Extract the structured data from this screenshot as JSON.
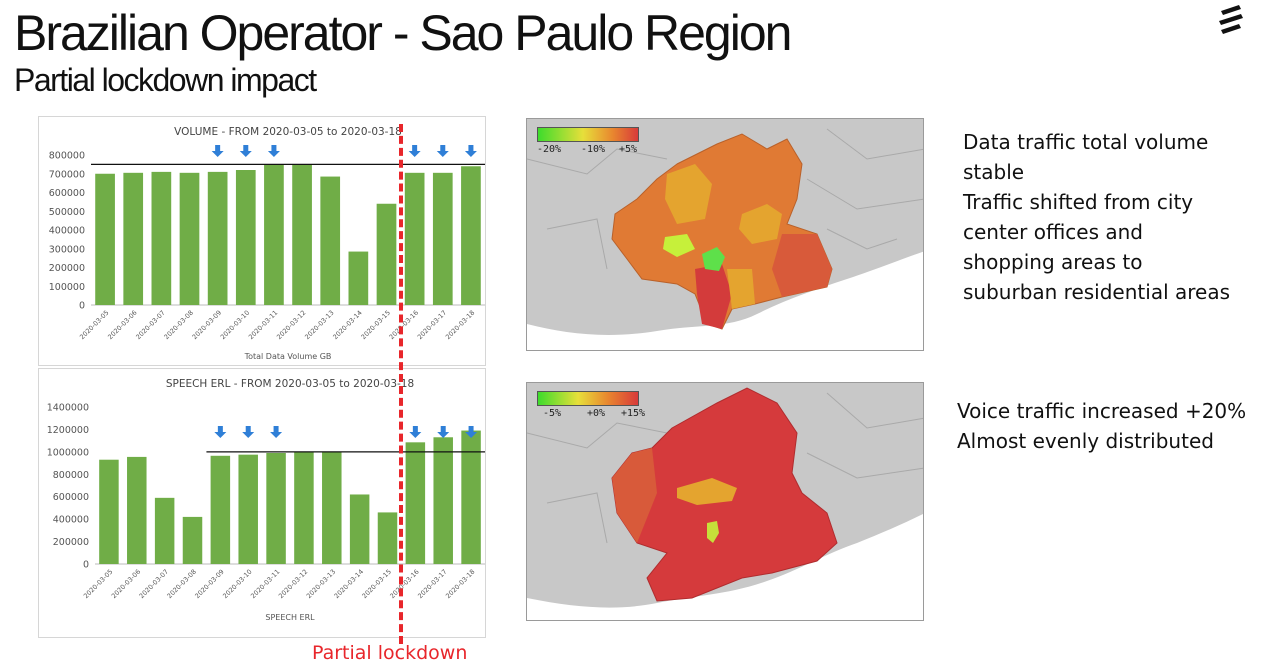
{
  "header": {
    "title": "Brazilian Operator - Sao Paulo Region",
    "subtitle": "Partial lockdown impact"
  },
  "lockdown_label": "Partial lockdown",
  "colors": {
    "bar": "#70ad47",
    "arrow": "#2f7fd7",
    "lockdown": "#e8262b",
    "map_background": "#c8c8c8"
  },
  "chart_data": [
    {
      "type": "bar",
      "title": "VOLUME - FROM 2020-03-05 to 2020-03-18",
      "xlabel": "Total Data Volume GB",
      "ylabel": "",
      "categories": [
        "2020-03-05",
        "2020-03-06",
        "2020-03-07",
        "2020-03-08",
        "2020-03-09",
        "2020-03-10",
        "2020-03-11",
        "2020-03-12",
        "2020-03-13",
        "2020-03-14",
        "2020-03-15",
        "2020-03-16",
        "2020-03-17",
        "2020-03-18"
      ],
      "values": [
        700000,
        705000,
        710000,
        705000,
        710000,
        720000,
        750000,
        750000,
        685000,
        285000,
        540000,
        705000,
        705000,
        740000
      ],
      "ylim": [
        0,
        800000
      ],
      "yticks": [
        "0",
        "100000",
        "200000",
        "300000",
        "400000",
        "500000",
        "600000",
        "700000",
        "800000"
      ],
      "reference_line": 750000,
      "arrow_markers": [
        "2020-03-09",
        "2020-03-10",
        "2020-03-11",
        "2020-03-16",
        "2020-03-17",
        "2020-03-18"
      ]
    },
    {
      "type": "bar",
      "title": "SPEECH ERL - FROM 2020-03-05 to 2020-03-18",
      "xlabel": "SPEECH ERL",
      "ylabel": "",
      "categories": [
        "2020-03-05",
        "2020-03-06",
        "2020-03-07",
        "2020-03-08",
        "2020-03-09",
        "2020-03-10",
        "2020-03-11",
        "2020-03-12",
        "2020-03-13",
        "2020-03-14",
        "2020-03-15",
        "2020-03-16",
        "2020-03-17",
        "2020-03-18"
      ],
      "values": [
        930000,
        955000,
        590000,
        420000,
        965000,
        975000,
        990000,
        1000000,
        1000000,
        620000,
        460000,
        1085000,
        1130000,
        1190000
      ],
      "ylim": [
        0,
        1400000
      ],
      "yticks": [
        "0",
        "200000",
        "400000",
        "600000",
        "800000",
        "1000000",
        "1200000",
        "1400000"
      ],
      "reference_line": 1000000,
      "reference_line_start": "2020-03-09",
      "arrow_markers": [
        "2020-03-09",
        "2020-03-10",
        "2020-03-11",
        "2020-03-16",
        "2020-03-17",
        "2020-03-18"
      ]
    }
  ],
  "maps": {
    "data": {
      "legend_ticks": [
        "-20%",
        "-10%",
        "+5%"
      ]
    },
    "voice": {
      "legend_ticks": [
        "-5%",
        "+0%",
        "+15%"
      ]
    }
  },
  "notes": {
    "data_lines": [
      "Data traffic total volume",
      "stable",
      "Traffic shifted from city",
      "center offices and",
      "shopping areas to",
      "suburban residential areas"
    ],
    "voice_lines": [
      "Voice traffic increased +20%",
      "Almost evenly distributed"
    ]
  }
}
